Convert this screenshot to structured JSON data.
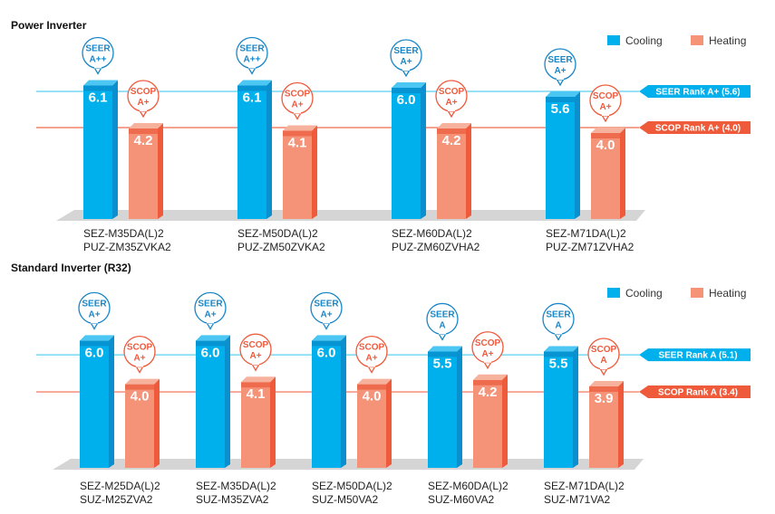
{
  "colors": {
    "cooling": "#00b0ec",
    "cooling_side": "#0a8fcf",
    "cooling_top": "#0c7ec0",
    "heating": "#f59378",
    "heating_side": "#ef5a3a",
    "heating_top": "#e84a2c",
    "seer_line": "#5ccff2",
    "scop_line": "#ef6a4a",
    "floor": "#d5d5d5",
    "bubble_blue": "#1a86c6",
    "bubble_red": "#ee5a3c"
  },
  "chart_data": [
    {
      "type": "bar",
      "title": "Power Inverter",
      "legend": [
        "Cooling",
        "Heating"
      ],
      "legend_position": "top-right",
      "categories": [
        [
          "SEZ-M35DA(L)2",
          "PUZ-ZM35ZVKA2"
        ],
        [
          "SEZ-M50DA(L)2",
          "PUZ-ZM50ZVKA2"
        ],
        [
          "SEZ-M60DA(L)2",
          "PUZ-ZM60ZVHA2"
        ],
        [
          "SEZ-M71DA(L)2",
          "PUZ-ZM71ZVHA2"
        ]
      ],
      "series": [
        {
          "name": "Cooling",
          "values": [
            6.1,
            6.1,
            6.0,
            5.6
          ],
          "value_labels": [
            "6.1",
            "6.1",
            "6.0",
            "5.6"
          ],
          "badges": [
            [
              "SEER",
              "A++"
            ],
            [
              "SEER",
              "A++"
            ],
            [
              "SEER",
              "A+"
            ],
            [
              "SEER",
              "A+"
            ]
          ]
        },
        {
          "name": "Heating",
          "values": [
            4.2,
            4.1,
            4.2,
            4.0
          ],
          "value_labels": [
            "4.2",
            "4.1",
            "4.2",
            "4.0"
          ],
          "badges": [
            [
              "SCOP",
              "A+"
            ],
            [
              "SCOP",
              "A+"
            ],
            [
              "SCOP",
              "A+"
            ],
            [
              "SCOP",
              "A+"
            ]
          ]
        }
      ],
      "reference_lines": [
        {
          "label": "SEER Rank A+ (5.6)",
          "value": 5.6,
          "series": "Cooling"
        },
        {
          "label": "SCOP Rank A+  (4.0)",
          "value": 4.0,
          "series": "Heating"
        }
      ]
    },
    {
      "type": "bar",
      "title": "Standard Inverter (R32)",
      "legend": [
        "Cooling",
        "Heating"
      ],
      "legend_position": "top-right",
      "categories": [
        [
          "SEZ-M25DA(L)2",
          "SUZ-M25ZVA2"
        ],
        [
          "SEZ-M35DA(L)2",
          "SUZ-M35ZVA2"
        ],
        [
          "SEZ-M50DA(L)2",
          "SUZ-M50VA2"
        ],
        [
          "SEZ-M60DA(L)2",
          "SUZ-M60VA2"
        ],
        [
          "SEZ-M71DA(L)2",
          "SUZ-M71VA2"
        ]
      ],
      "series": [
        {
          "name": "Cooling",
          "values": [
            6.0,
            6.0,
            6.0,
            5.5,
            5.5
          ],
          "value_labels": [
            "6.0",
            "6.0",
            "6.0",
            "5.5",
            "5.5"
          ],
          "badges": [
            [
              "SEER",
              "A+"
            ],
            [
              "SEER",
              "A+"
            ],
            [
              "SEER",
              "A+"
            ],
            [
              "SEER",
              "A"
            ],
            [
              "SEER",
              "A"
            ]
          ]
        },
        {
          "name": "Heating",
          "values": [
            4.0,
            4.1,
            4.0,
            4.2,
            3.9
          ],
          "value_labels": [
            "4.0",
            "4.1",
            "4.0",
            "4.2",
            "3.9"
          ],
          "badges": [
            [
              "SCOP",
              "A+"
            ],
            [
              "SCOP",
              "A+"
            ],
            [
              "SCOP",
              "A+"
            ],
            [
              "SCOP",
              "A+"
            ],
            [
              "SCOP",
              "A"
            ]
          ]
        }
      ],
      "reference_lines": [
        {
          "label": "SEER Rank A (5.1)",
          "value": 5.1,
          "series": "Cooling"
        },
        {
          "label": "SCOP Rank A (3.4)",
          "value": 3.4,
          "series": "Heating"
        }
      ]
    }
  ]
}
